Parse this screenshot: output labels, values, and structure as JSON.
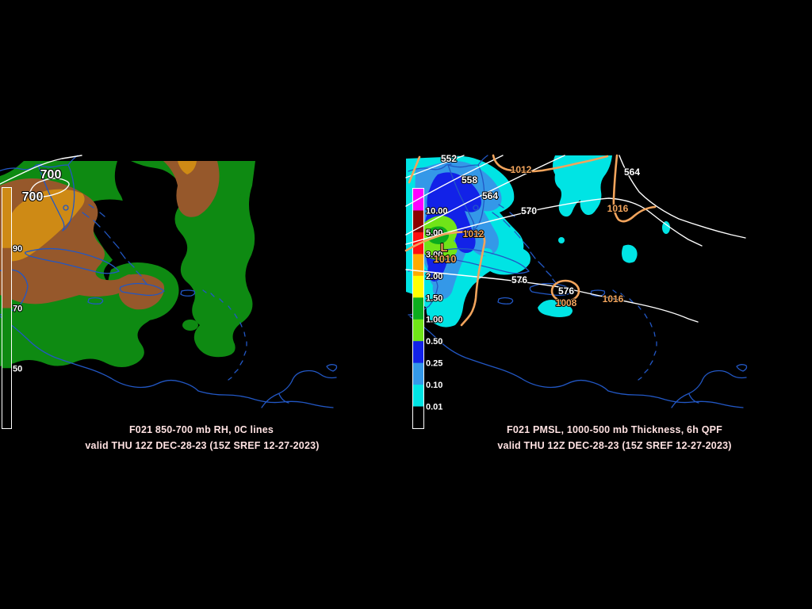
{
  "left_panel": {
    "title_line1": "F021 850-700 mb RH, 0C lines",
    "title_line2": "valid THU 12Z DEC-28-23 (15Z SREF 12-27-2023)",
    "contour_labels": [
      "700",
      "700"
    ],
    "colorbar": {
      "segments": [
        "#CE8A15",
        "#96582B",
        "#0E8A12",
        "#000000"
      ],
      "labels": [
        "90",
        "70",
        "50"
      ]
    }
  },
  "right_panel": {
    "title_line1": "F021 PMSL, 1000-500 mb Thickness, 6h QPF",
    "title_line2": "valid THU 12Z DEC-28-23 (15Z SREF 12-27-2023)",
    "thickness_labels": [
      "552",
      "558",
      "564",
      "570",
      "564",
      "576",
      "576"
    ],
    "pressure_labels": [
      "1012",
      "1012",
      "1016",
      "1016",
      "1008",
      "1010"
    ],
    "low_marker": "L",
    "colorbar": {
      "segments": [
        "#FF00FF",
        "#8B0000",
        "#FF1010",
        "#FFAA00",
        "#FFFF00",
        "#0CAC1E",
        "#70E418",
        "#1222E8",
        "#3498E8",
        "#00E4E4",
        "#000000"
      ],
      "labels": [
        "10.00",
        "5.00",
        "3.00",
        "2.00",
        "1.50",
        "1.00",
        "0.50",
        "0.25",
        "0.10",
        "0.01"
      ]
    }
  },
  "colors": {
    "background": "#000000",
    "coastline": "#2257C4",
    "title_text": "#FFE2E2",
    "contour_white": "#FFFFFF",
    "isobar_orange": "#F2A45C",
    "bar_label_white": "#FFFFFF",
    "rh": {
      "green": "#0E8A12",
      "brown": "#96582B",
      "orange": "#CE8A15"
    },
    "qpf": {
      "cyan": "#00E4E4",
      "blue_light": "#3498E8",
      "blue": "#1222E8",
      "chartreuse": "#70E418",
      "green": "#0CAC1E"
    }
  }
}
